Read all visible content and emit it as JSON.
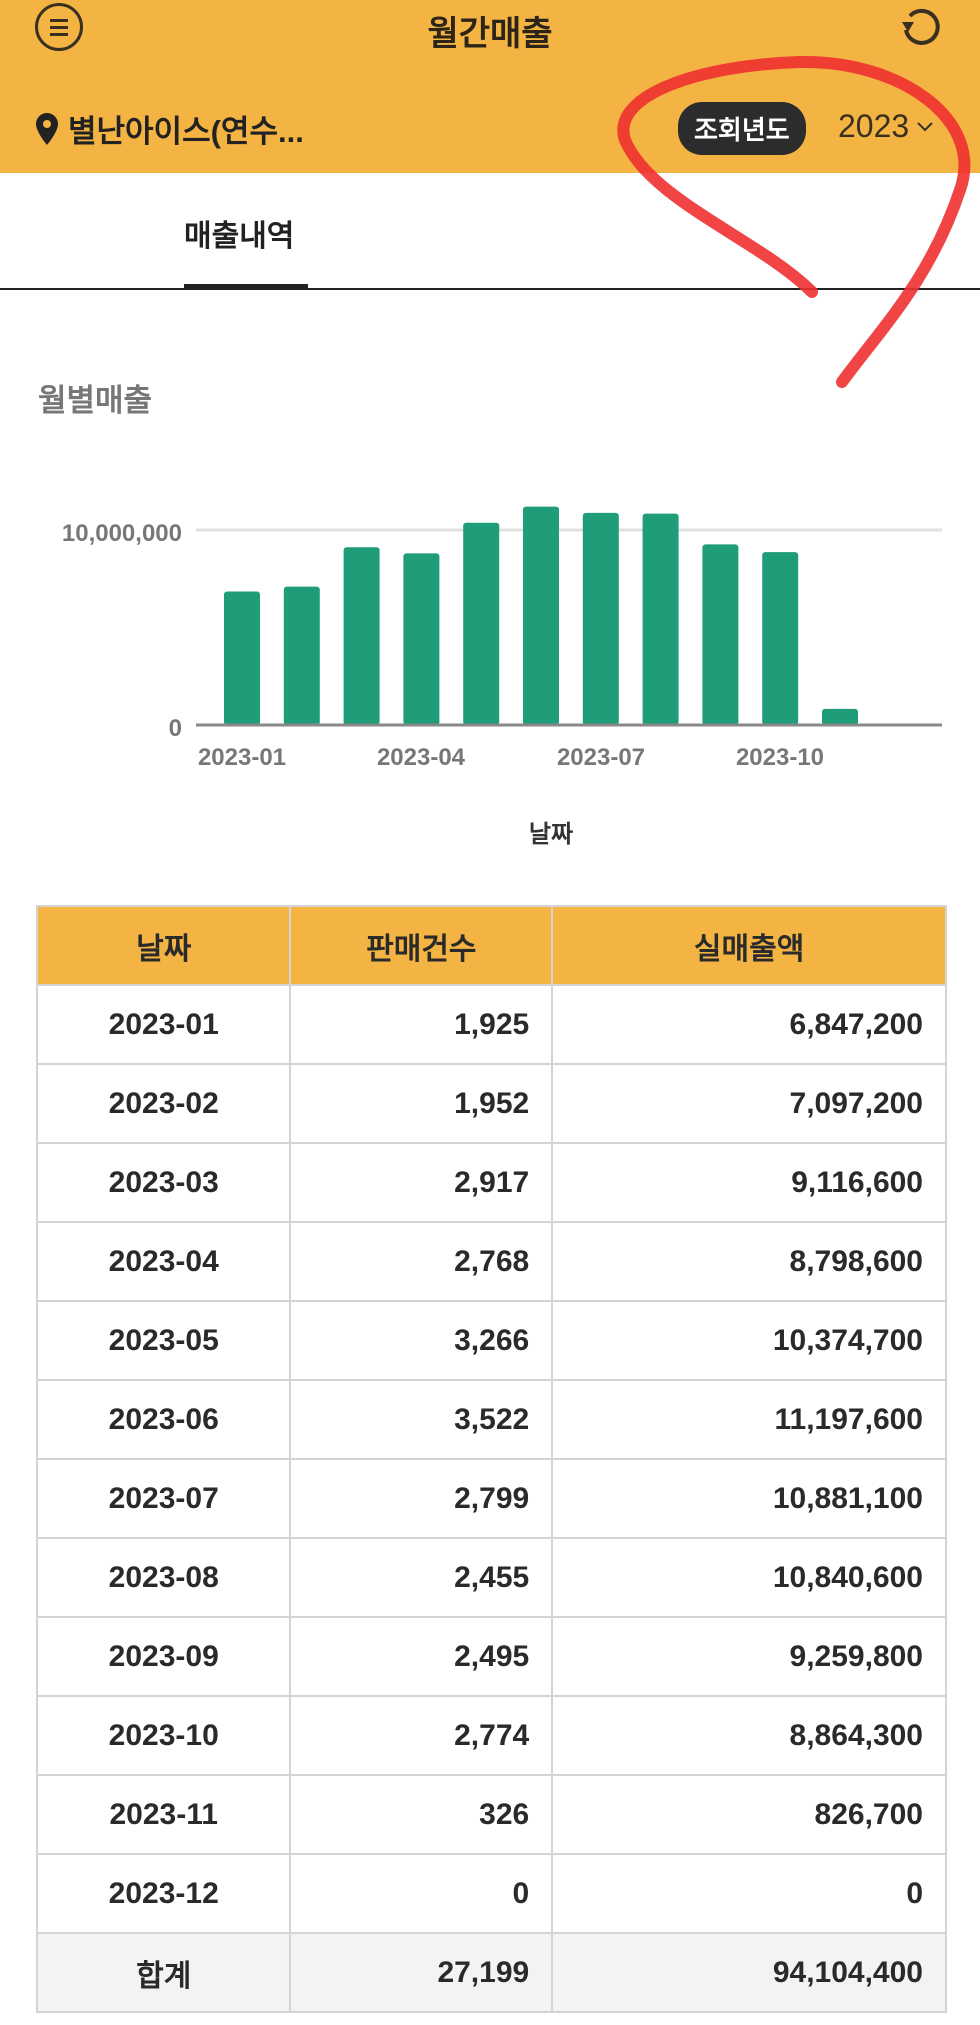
{
  "header": {
    "title": "월간매출",
    "store": "별난아이스(연수...",
    "year_label": "조회년도",
    "year_value": "2023"
  },
  "tabs": [
    {
      "label": "매출내역",
      "active": true
    }
  ],
  "section_title": "월별매출",
  "colors": {
    "header": "#f3b443",
    "bar": "#1f9c78",
    "annotation": "#f03030"
  },
  "chart_data": {
    "type": "bar",
    "title": "월별매출",
    "xlabel": "날짜",
    "ylabel": "",
    "categories": [
      "2023-01",
      "2023-02",
      "2023-03",
      "2023-04",
      "2023-05",
      "2023-06",
      "2023-07",
      "2023-08",
      "2023-09",
      "2023-10",
      "2023-11",
      "2023-12"
    ],
    "values": [
      6847200,
      7097200,
      9116600,
      8798600,
      10374700,
      11197600,
      10881100,
      10840600,
      9259800,
      8864300,
      826700,
      0
    ],
    "x_tick_labels": [
      "2023-01",
      "2023-04",
      "2023-07",
      "2023-10"
    ],
    "y_tick_labels": [
      "0",
      "10,000,000"
    ],
    "ylim": [
      0,
      12000000
    ],
    "grid": true
  },
  "table": {
    "headers": [
      "날짜",
      "판매건수",
      "실매출액"
    ],
    "rows": [
      [
        "2023-01",
        "1,925",
        "6,847,200"
      ],
      [
        "2023-02",
        "1,952",
        "7,097,200"
      ],
      [
        "2023-03",
        "2,917",
        "9,116,600"
      ],
      [
        "2023-04",
        "2,768",
        "8,798,600"
      ],
      [
        "2023-05",
        "3,266",
        "10,374,700"
      ],
      [
        "2023-06",
        "3,522",
        "11,197,600"
      ],
      [
        "2023-07",
        "2,799",
        "10,881,100"
      ],
      [
        "2023-08",
        "2,455",
        "10,840,600"
      ],
      [
        "2023-09",
        "2,495",
        "9,259,800"
      ],
      [
        "2023-10",
        "2,774",
        "8,864,300"
      ],
      [
        "2023-11",
        "326",
        "826,700"
      ],
      [
        "2023-12",
        "0",
        "0"
      ]
    ],
    "total": [
      "합계",
      "27,199",
      "94,104,400"
    ]
  }
}
